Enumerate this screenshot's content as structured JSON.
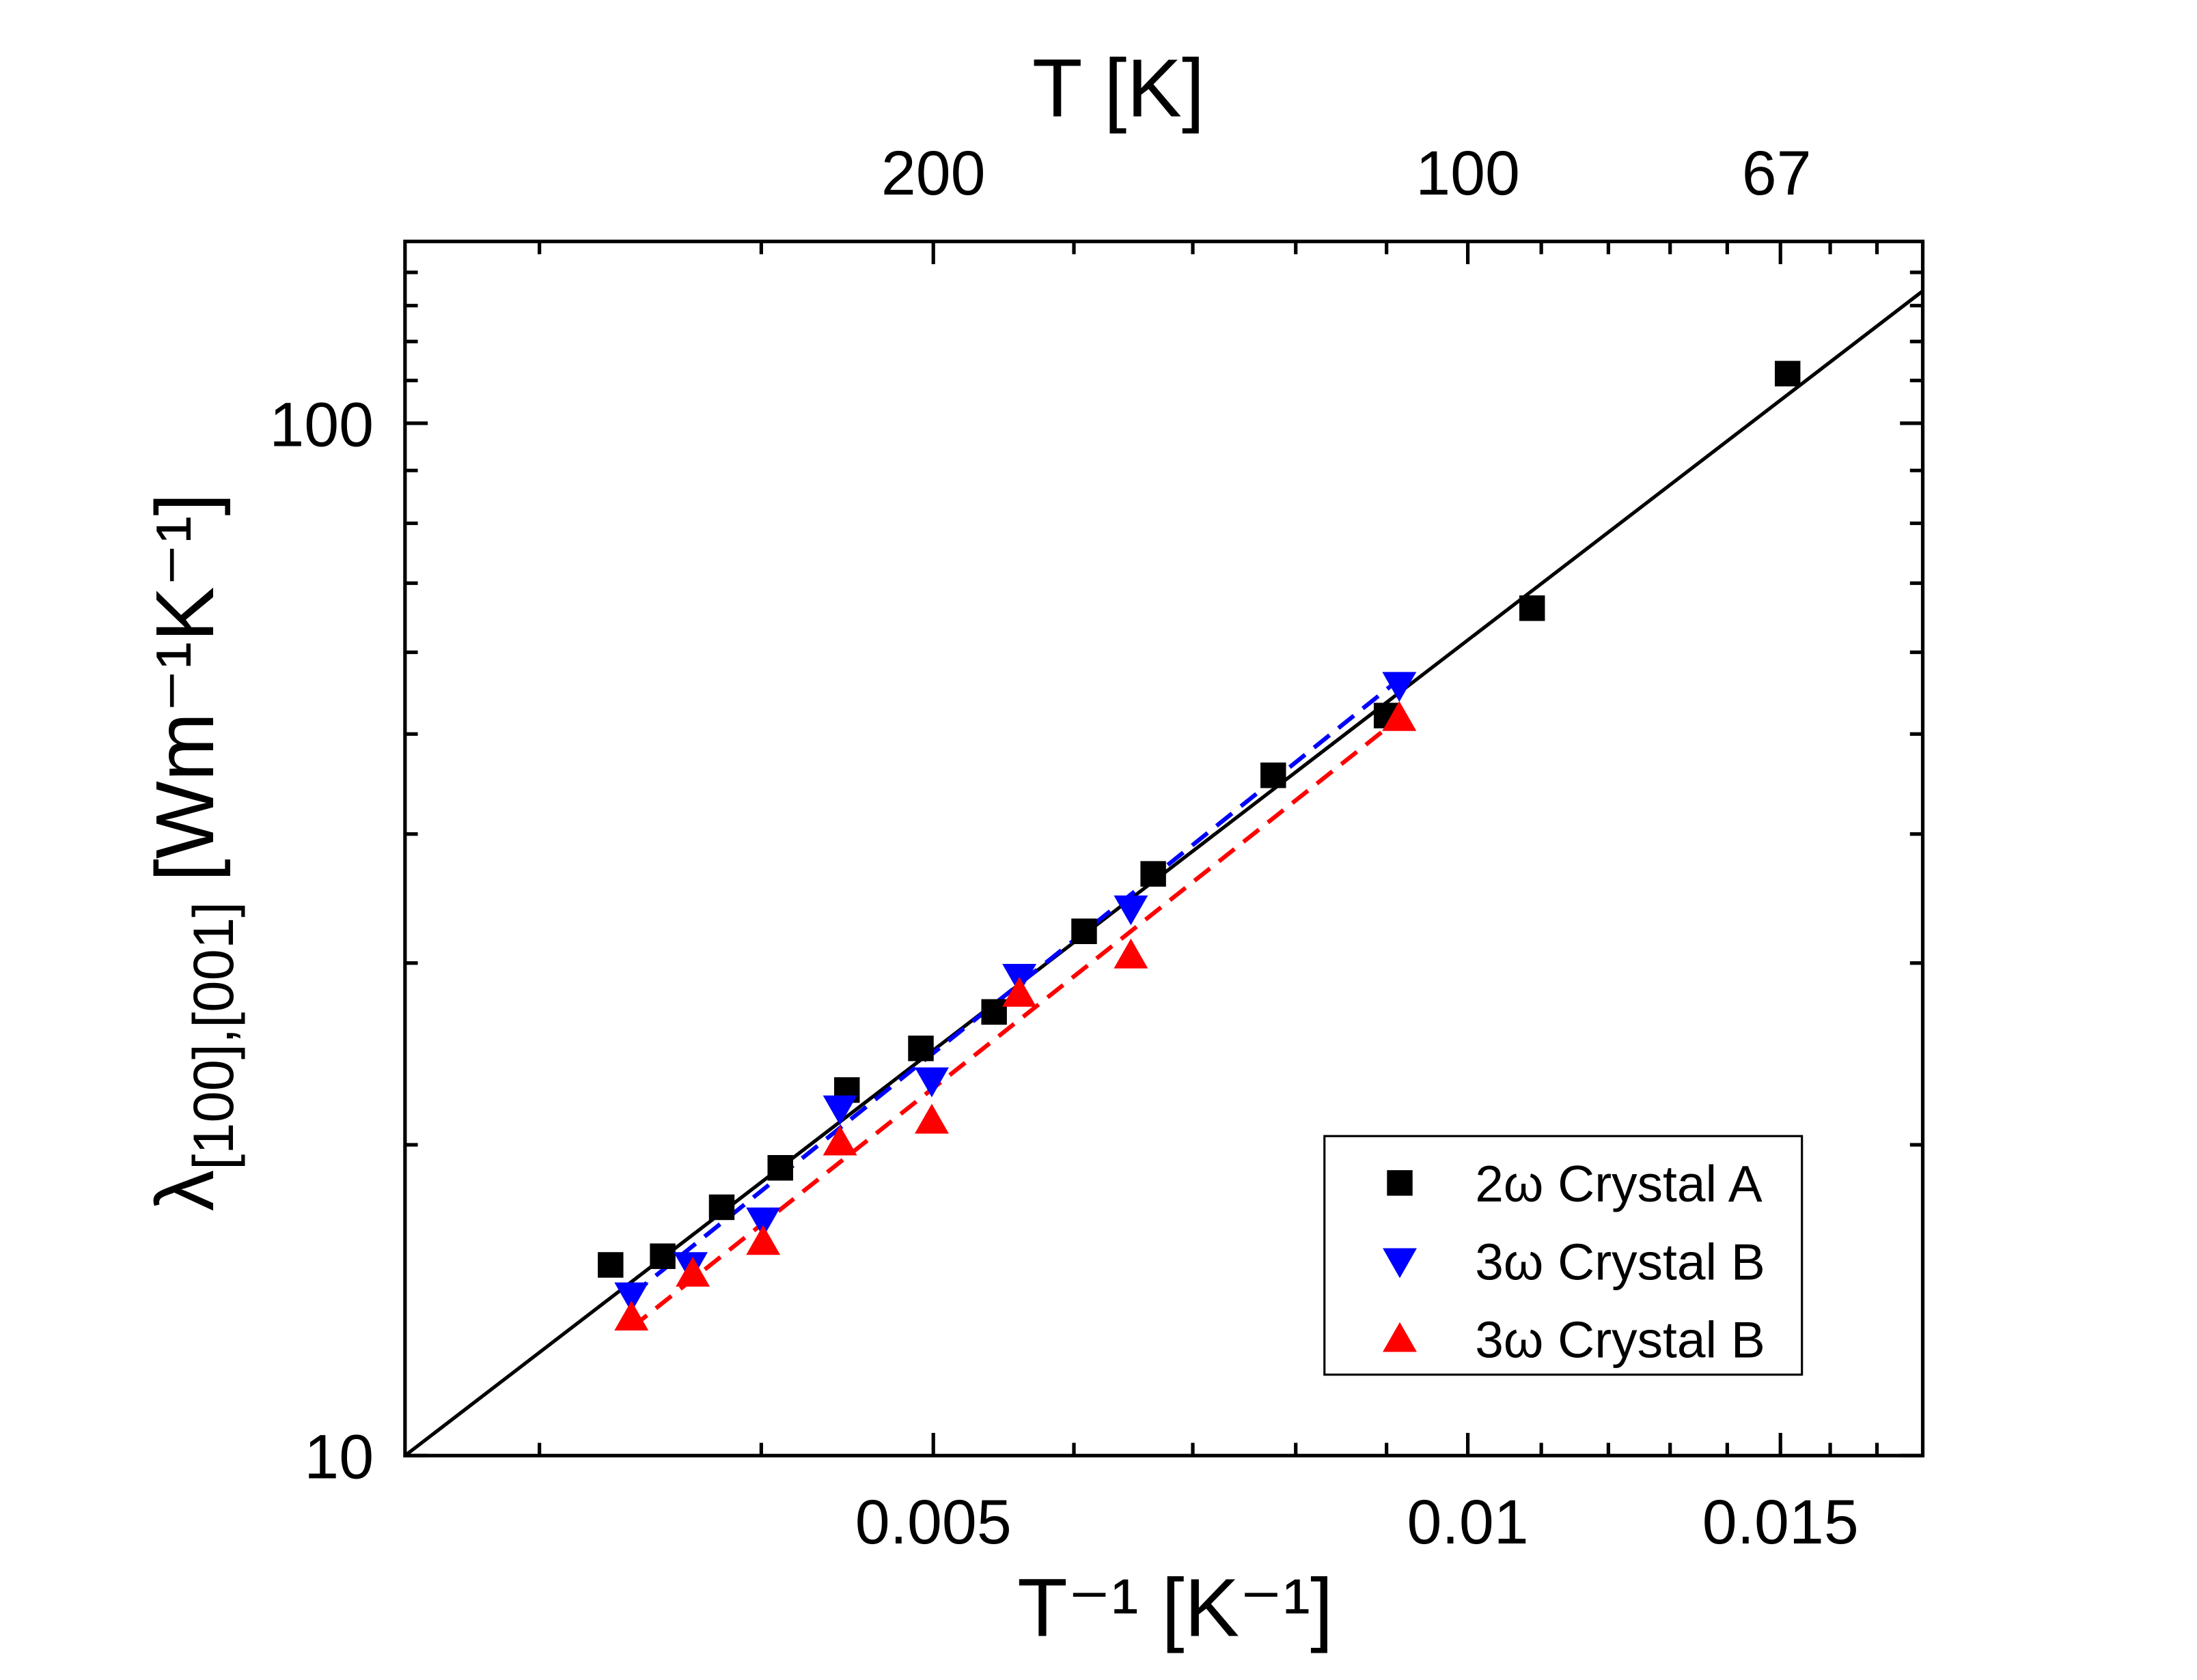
{
  "chart_data": {
    "type": "scatter",
    "xlabel": "T⁻¹ [K⁻¹]",
    "ylabel": {
      "symbol": "λ",
      "subscript": "[100],[001]",
      "unit": "[Wm⁻¹K⁻¹]"
    },
    "x2label": "T [K]",
    "xscale": "log",
    "yscale": "log",
    "x2scale": "reciprocal",
    "xlim": [
      0.00252,
      0.01804
    ],
    "ylim": [
      10,
      150
    ],
    "xticks": [
      0.005,
      0.01,
      0.015
    ],
    "xminor": [
      0.003,
      0.004,
      0.006,
      0.007,
      0.008,
      0.009,
      0.011,
      0.012,
      0.013,
      0.014,
      0.016,
      0.017
    ],
    "yticks": [
      10,
      100
    ],
    "yminor": [
      20,
      30,
      40,
      50,
      60,
      70,
      80,
      90,
      110,
      120,
      130,
      140
    ],
    "x2ticks": [
      200,
      100,
      67
    ],
    "legend": "lower right",
    "series": [
      {
        "name": "2ω Crystal A",
        "color": "#000000",
        "marker": "square",
        "x": [
          0.00329,
          0.00352,
          0.0038,
          0.0041,
          0.00447,
          0.00492,
          0.00541,
          0.00608,
          0.00665,
          0.00777,
          0.009,
          0.01087,
          0.01514
        ],
        "values": [
          15.3,
          15.6,
          17.4,
          19.0,
          22.6,
          24.8,
          26.9,
          32.2,
          36.6,
          45.6,
          52.1,
          66.2,
          111.7
        ]
      },
      {
        "name": "3ω Crystal B",
        "color": "#0000ff",
        "marker": "triangle-down",
        "x": [
          0.00338,
          0.00365,
          0.00401,
          0.00443,
          0.00499,
          0.00559,
          0.00646,
          0.00915
        ],
        "values": [
          14.3,
          15.3,
          16.9,
          21.7,
          23.1,
          29.1,
          33.9,
          55.8
        ]
      },
      {
        "name": "3ω Crystal B",
        "color": "#ff0000",
        "marker": "triangle-up",
        "x": [
          0.00338,
          0.00366,
          0.00401,
          0.00443,
          0.00499,
          0.00559,
          0.00646,
          0.00915
        ],
        "values": [
          13.6,
          15.0,
          16.1,
          20.1,
          21.1,
          28.0,
          30.5,
          51.8
        ]
      }
    ],
    "fits": [
      {
        "color": "#000000",
        "dash": false,
        "x": [
          0.00252,
          0.01804
        ],
        "values": [
          10,
          134.3
        ]
      },
      {
        "color": "#0000ff",
        "dash": true,
        "x": [
          0.00338,
          0.00915
        ],
        "values": [
          14.3,
          56.5
        ]
      },
      {
        "color": "#ff0000",
        "dash": true,
        "x": [
          0.00338,
          0.00915
        ],
        "values": [
          13.3,
          51.8
        ]
      }
    ]
  }
}
